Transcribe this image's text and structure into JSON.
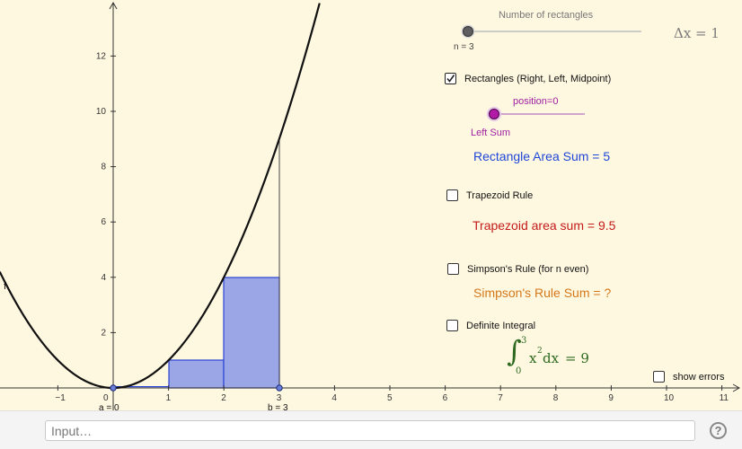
{
  "rect_slider": {
    "title": "Number of rectangles",
    "value_label": "n = 3"
  },
  "delta_x": "Δx = 1",
  "rectangles": {
    "checked": true,
    "label": "Rectangles (Right, Left, Midpoint)"
  },
  "position_slider": {
    "label": "position=0",
    "caption": "Left Sum"
  },
  "rect_area_sum": "Rectangle Area Sum = 5",
  "trapezoid": {
    "checked": false,
    "label": "Trapezoid Rule",
    "sum_text": "Trapezoid area sum = 9.5"
  },
  "simpson": {
    "checked": false,
    "label": "Simpson's Rule (for n even)",
    "sum_text": "Simpson's Rule Sum = ?"
  },
  "definite_integral": {
    "checked": false,
    "label": "Definite Integral",
    "lower": "0",
    "upper": "3",
    "integrand": "x",
    "exponent": "2",
    "differential": "dx",
    "result": "= 9"
  },
  "show_errors": {
    "checked": false,
    "label": "show errors"
  },
  "point_a": "a = 0",
  "point_b": "b = 3",
  "graph": {
    "x_ticks": [
      "−1",
      "0",
      "1",
      "2",
      "3",
      "4",
      "5",
      "6",
      "7",
      "8",
      "9",
      "10",
      "11"
    ],
    "y_ticks": [
      "2",
      "4",
      "6",
      "8",
      "10",
      "12"
    ],
    "curve_label": "f"
  },
  "input_bar": {
    "placeholder": "Input…"
  },
  "help_icon": "?"
}
